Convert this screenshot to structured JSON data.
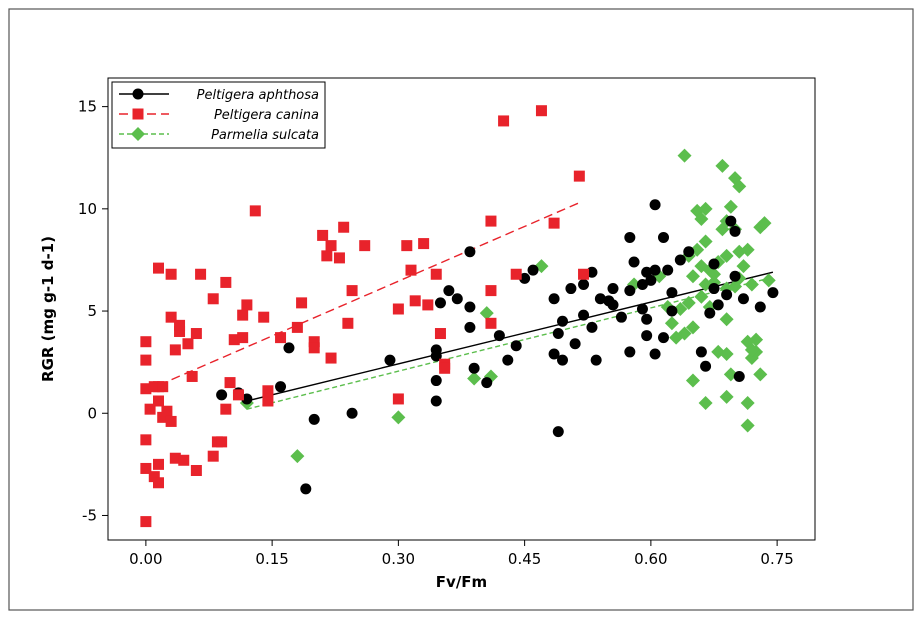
{
  "chart_data": {
    "type": "scatter",
    "xlabel": "Fv/Fm",
    "ylabel": "RGR (mg g-1 d-1)",
    "xlim": [
      -0.045,
      0.795
    ],
    "ylim": [
      -6.2,
      16.4
    ],
    "x_ticks": [
      "0.00",
      "0.15",
      "0.30",
      "0.45",
      "0.60",
      "0.75"
    ],
    "x_tick_values": [
      0,
      0.15,
      0.3,
      0.45,
      0.6,
      0.75
    ],
    "y_ticks": [
      "-5",
      "0",
      "5",
      "10",
      "15"
    ],
    "y_tick_values": [
      -5,
      0,
      5,
      10,
      15
    ],
    "grid": false,
    "legend_position": "top-left",
    "series": [
      {
        "name": "Peltigera aphthosa",
        "marker": "circle",
        "color": "#000000",
        "line_style": "solid",
        "fit": [
          [
            0.12,
            0.6
          ],
          [
            0.745,
            6.9
          ]
        ],
        "points": [
          [
            0.09,
            0.9
          ],
          [
            0.11,
            1.0
          ],
          [
            0.12,
            0.7
          ],
          [
            0.16,
            1.3
          ],
          [
            0.17,
            3.2
          ],
          [
            0.19,
            -3.7
          ],
          [
            0.2,
            -0.3
          ],
          [
            0.245,
            0.0
          ],
          [
            0.29,
            2.6
          ],
          [
            0.345,
            2.8
          ],
          [
            0.345,
            3.1
          ],
          [
            0.345,
            1.6
          ],
          [
            0.345,
            0.6
          ],
          [
            0.35,
            5.4
          ],
          [
            0.36,
            6.0
          ],
          [
            0.37,
            5.6
          ],
          [
            0.385,
            5.2
          ],
          [
            0.385,
            4.2
          ],
          [
            0.39,
            2.2
          ],
          [
            0.385,
            7.9
          ],
          [
            0.405,
            1.5
          ],
          [
            0.42,
            3.8
          ],
          [
            0.43,
            2.6
          ],
          [
            0.44,
            3.3
          ],
          [
            0.45,
            6.6
          ],
          [
            0.46,
            7.0
          ],
          [
            0.485,
            5.6
          ],
          [
            0.485,
            2.9
          ],
          [
            0.49,
            3.9
          ],
          [
            0.495,
            4.5
          ],
          [
            0.495,
            2.6
          ],
          [
            0.49,
            -0.9
          ],
          [
            0.505,
            6.1
          ],
          [
            0.51,
            3.4
          ],
          [
            0.52,
            4.8
          ],
          [
            0.52,
            6.3
          ],
          [
            0.53,
            6.9
          ],
          [
            0.53,
            4.2
          ],
          [
            0.535,
            2.6
          ],
          [
            0.54,
            5.6
          ],
          [
            0.55,
            5.5
          ],
          [
            0.555,
            5.3
          ],
          [
            0.555,
            6.1
          ],
          [
            0.565,
            4.7
          ],
          [
            0.575,
            6.0
          ],
          [
            0.575,
            8.6
          ],
          [
            0.575,
            3.0
          ],
          [
            0.58,
            7.4
          ],
          [
            0.59,
            6.3
          ],
          [
            0.59,
            5.1
          ],
          [
            0.595,
            3.8
          ],
          [
            0.595,
            4.6
          ],
          [
            0.595,
            6.9
          ],
          [
            0.6,
            6.5
          ],
          [
            0.605,
            10.2
          ],
          [
            0.605,
            7.0
          ],
          [
            0.615,
            3.7
          ],
          [
            0.615,
            8.6
          ],
          [
            0.62,
            7.0
          ],
          [
            0.625,
            5.9
          ],
          [
            0.635,
            7.5
          ],
          [
            0.645,
            7.9
          ],
          [
            0.66,
            3.0
          ],
          [
            0.665,
            2.3
          ],
          [
            0.67,
            4.9
          ],
          [
            0.675,
            7.3
          ],
          [
            0.68,
            5.3
          ],
          [
            0.69,
            5.8
          ],
          [
            0.695,
            9.4
          ],
          [
            0.7,
            6.7
          ],
          [
            0.705,
            1.8
          ],
          [
            0.71,
            5.6
          ],
          [
            0.73,
            5.2
          ],
          [
            0.745,
            5.9
          ],
          [
            0.7,
            8.9
          ],
          [
            0.675,
            6.1
          ],
          [
            0.605,
            2.9
          ],
          [
            0.625,
            5.0
          ]
        ]
      },
      {
        "name": "Peltigera canina",
        "marker": "square",
        "color": "#e8232b",
        "line_style": "dashed",
        "fit": [
          [
            0.0,
            1.1
          ],
          [
            0.515,
            10.3
          ]
        ],
        "points": [
          [
            0.0,
            -5.3
          ],
          [
            0.0,
            -2.7
          ],
          [
            0.0,
            -1.3
          ],
          [
            0.0,
            1.2
          ],
          [
            0.0,
            2.6
          ],
          [
            0.0,
            3.5
          ],
          [
            0.005,
            0.2
          ],
          [
            0.01,
            -3.1
          ],
          [
            0.01,
            1.3
          ],
          [
            0.015,
            -3.4
          ],
          [
            0.015,
            -2.5
          ],
          [
            0.015,
            0.6
          ],
          [
            0.015,
            1.3
          ],
          [
            0.02,
            -0.2
          ],
          [
            0.02,
            1.3
          ],
          [
            0.025,
            0.1
          ],
          [
            0.03,
            -0.4
          ],
          [
            0.03,
            4.7
          ],
          [
            0.035,
            3.1
          ],
          [
            0.035,
            -2.2
          ],
          [
            0.04,
            4.0
          ],
          [
            0.04,
            4.3
          ],
          [
            0.045,
            -2.3
          ],
          [
            0.05,
            3.4
          ],
          [
            0.055,
            1.8
          ],
          [
            0.06,
            -2.8
          ],
          [
            0.06,
            3.9
          ],
          [
            0.065,
            6.8
          ],
          [
            0.03,
            6.8
          ],
          [
            0.015,
            7.1
          ],
          [
            0.08,
            -2.1
          ],
          [
            0.08,
            5.6
          ],
          [
            0.085,
            -1.4
          ],
          [
            0.09,
            -1.4
          ],
          [
            0.095,
            0.2
          ],
          [
            0.095,
            6.4
          ],
          [
            0.1,
            1.5
          ],
          [
            0.105,
            3.6
          ],
          [
            0.11,
            0.9
          ],
          [
            0.115,
            4.8
          ],
          [
            0.115,
            3.7
          ],
          [
            0.12,
            5.3
          ],
          [
            0.13,
            9.9
          ],
          [
            0.14,
            4.7
          ],
          [
            0.145,
            0.6
          ],
          [
            0.145,
            1.1
          ],
          [
            0.16,
            3.7
          ],
          [
            0.18,
            4.2
          ],
          [
            0.185,
            5.4
          ],
          [
            0.2,
            3.5
          ],
          [
            0.2,
            3.2
          ],
          [
            0.21,
            8.7
          ],
          [
            0.215,
            7.7
          ],
          [
            0.22,
            8.2
          ],
          [
            0.22,
            2.7
          ],
          [
            0.23,
            7.6
          ],
          [
            0.235,
            9.1
          ],
          [
            0.24,
            4.4
          ],
          [
            0.245,
            6.0
          ],
          [
            0.26,
            8.2
          ],
          [
            0.3,
            5.1
          ],
          [
            0.3,
            0.7
          ],
          [
            0.31,
            8.2
          ],
          [
            0.315,
            7.0
          ],
          [
            0.32,
            5.5
          ],
          [
            0.33,
            8.3
          ],
          [
            0.335,
            5.3
          ],
          [
            0.345,
            6.8
          ],
          [
            0.35,
            3.9
          ],
          [
            0.355,
            2.4
          ],
          [
            0.355,
            2.2
          ],
          [
            0.41,
            4.4
          ],
          [
            0.41,
            9.4
          ],
          [
            0.41,
            6.0
          ],
          [
            0.425,
            14.3
          ],
          [
            0.44,
            6.8
          ],
          [
            0.47,
            14.8
          ],
          [
            0.485,
            9.3
          ],
          [
            0.515,
            11.6
          ],
          [
            0.52,
            6.8
          ]
        ]
      },
      {
        "name": "Parmelia sulcata",
        "marker": "diamond",
        "color": "#5cbe4d",
        "line_style": "dashed",
        "fit": [
          [
            0.12,
            0.2
          ],
          [
            0.74,
            6.6
          ]
        ],
        "points": [
          [
            0.12,
            0.5
          ],
          [
            0.18,
            -2.1
          ],
          [
            0.3,
            -0.2
          ],
          [
            0.39,
            1.7
          ],
          [
            0.405,
            4.9
          ],
          [
            0.41,
            1.8
          ],
          [
            0.47,
            7.2
          ],
          [
            0.58,
            6.3
          ],
          [
            0.64,
            12.6
          ],
          [
            0.645,
            7.7
          ],
          [
            0.65,
            6.7
          ],
          [
            0.65,
            4.2
          ],
          [
            0.655,
            8.0
          ],
          [
            0.655,
            9.9
          ],
          [
            0.66,
            9.5
          ],
          [
            0.66,
            7.2
          ],
          [
            0.66,
            5.7
          ],
          [
            0.665,
            10.0
          ],
          [
            0.665,
            8.4
          ],
          [
            0.665,
            6.3
          ],
          [
            0.665,
            0.5
          ],
          [
            0.67,
            7.0
          ],
          [
            0.67,
            5.2
          ],
          [
            0.675,
            6.8
          ],
          [
            0.675,
            6.4
          ],
          [
            0.68,
            7.4
          ],
          [
            0.685,
            12.1
          ],
          [
            0.685,
            9.0
          ],
          [
            0.69,
            9.4
          ],
          [
            0.69,
            7.7
          ],
          [
            0.69,
            6.1
          ],
          [
            0.69,
            4.6
          ],
          [
            0.69,
            0.8
          ],
          [
            0.695,
            10.1
          ],
          [
            0.7,
            11.5
          ],
          [
            0.7,
            9.0
          ],
          [
            0.7,
            6.2
          ],
          [
            0.705,
            11.1
          ],
          [
            0.705,
            7.9
          ],
          [
            0.705,
            6.6
          ],
          [
            0.71,
            7.2
          ],
          [
            0.715,
            8.0
          ],
          [
            0.715,
            3.5
          ],
          [
            0.715,
            0.5
          ],
          [
            0.72,
            2.7
          ],
          [
            0.72,
            6.3
          ],
          [
            0.725,
            3.0
          ],
          [
            0.725,
            3.6
          ],
          [
            0.73,
            9.1
          ],
          [
            0.73,
            1.9
          ],
          [
            0.735,
            9.3
          ],
          [
            0.74,
            6.5
          ],
          [
            0.715,
            -0.6
          ],
          [
            0.62,
            5.2
          ],
          [
            0.625,
            4.4
          ],
          [
            0.63,
            3.7
          ],
          [
            0.635,
            5.1
          ],
          [
            0.64,
            3.9
          ],
          [
            0.645,
            5.4
          ],
          [
            0.65,
            1.6
          ],
          [
            0.68,
            3.0
          ],
          [
            0.695,
            1.9
          ],
          [
            0.69,
            2.9
          ],
          [
            0.72,
            3.1
          ],
          [
            0.61,
            6.7
          ]
        ]
      }
    ]
  }
}
